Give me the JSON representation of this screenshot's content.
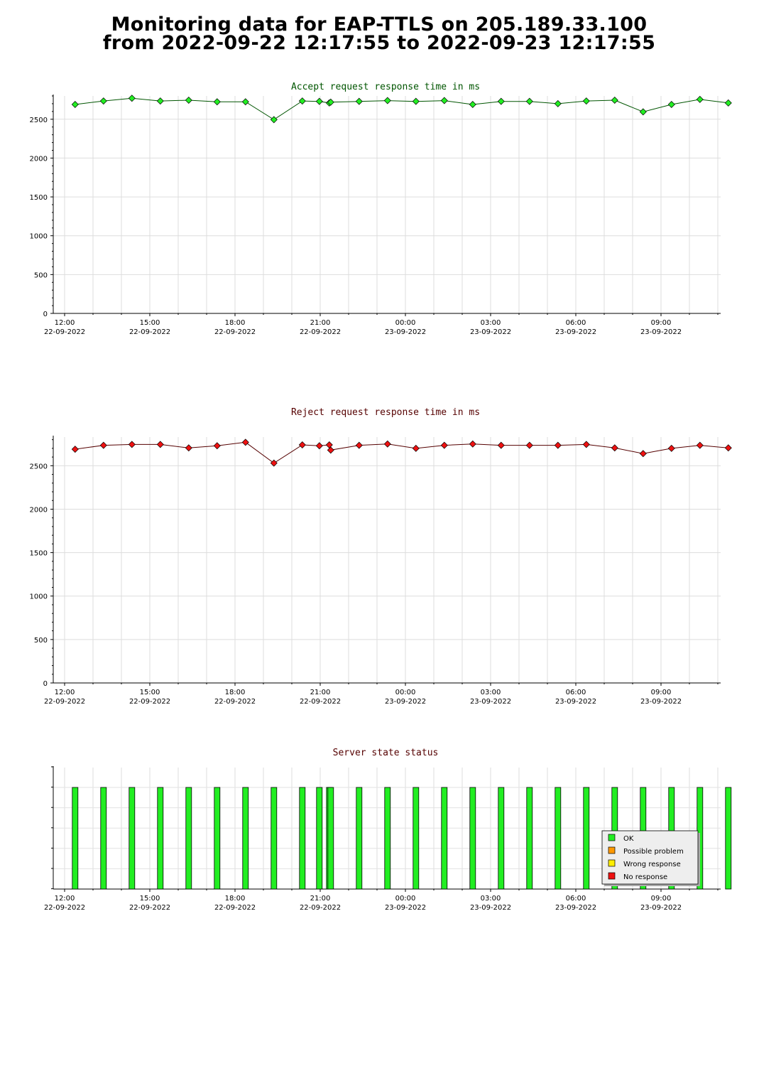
{
  "title_line1": "Monitoring data for EAP-TTLS on 205.189.33.100",
  "title_line2": "from 2022-09-22 12:17:55 to 2022-09-23 12:17:55",
  "x_ticks": [
    {
      "time": "12:00",
      "date": "22-09-2022"
    },
    {
      "time": "15:00",
      "date": "22-09-2022"
    },
    {
      "time": "18:00",
      "date": "22-09-2022"
    },
    {
      "time": "21:00",
      "date": "22-09-2022"
    },
    {
      "time": "00:00",
      "date": "23-09-2022"
    },
    {
      "time": "03:00",
      "date": "23-09-2022"
    },
    {
      "time": "06:00",
      "date": "23-09-2022"
    },
    {
      "time": "09:00",
      "date": "23-09-2022"
    }
  ],
  "legend": [
    {
      "label": "OK",
      "color": "#22ee22"
    },
    {
      "label": "Possible problem",
      "color": "#ff9900"
    },
    {
      "label": "Wrong response",
      "color": "#ffee00"
    },
    {
      "label": "No response",
      "color": "#ee1111"
    }
  ],
  "chart_data": [
    {
      "type": "line",
      "title": "Accept request response time in ms",
      "title_color": "#005500",
      "marker_color": "#22ee22",
      "line_color": "#005500",
      "x_unit": "hours since 22-09-2022 12:00",
      "xlim": [
        -0.4,
        23.1
      ],
      "ylim": [
        0,
        2800
      ],
      "yticks": [
        0,
        500,
        1000,
        1500,
        2000,
        2500
      ],
      "grid": true,
      "x": [
        0.37,
        1.37,
        2.37,
        3.37,
        4.37,
        5.37,
        6.37,
        7.37,
        8.37,
        8.97,
        9.32,
        9.37,
        10.37,
        11.37,
        12.37,
        13.37,
        14.37,
        15.37,
        16.37,
        17.37,
        18.37,
        19.37,
        20.37,
        21.37,
        22.37,
        23.37
      ],
      "y": [
        2690,
        2735,
        2770,
        2735,
        2745,
        2725,
        2725,
        2495,
        2735,
        2730,
        2710,
        2720,
        2730,
        2740,
        2730,
        2740,
        2690,
        2730,
        2730,
        2700,
        2735,
        2745,
        2595,
        2690,
        2755,
        2710
      ]
    },
    {
      "type": "line",
      "title": "Reject request response time in ms",
      "title_color": "#550000",
      "marker_color": "#ee1111",
      "line_color": "#550000",
      "x_unit": "hours since 22-09-2022 12:00",
      "xlim": [
        -0.4,
        23.1
      ],
      "ylim": [
        0,
        2830
      ],
      "yticks": [
        0,
        500,
        1000,
        1500,
        2000,
        2500
      ],
      "grid": true,
      "x": [
        0.37,
        1.37,
        2.37,
        3.37,
        4.37,
        5.37,
        6.37,
        7.37,
        8.37,
        8.97,
        9.32,
        9.37,
        10.37,
        11.37,
        12.37,
        13.37,
        14.37,
        15.37,
        16.37,
        17.37,
        18.37,
        19.37,
        20.37,
        21.37,
        22.37,
        23.37
      ],
      "y": [
        2690,
        2735,
        2745,
        2745,
        2705,
        2730,
        2770,
        2530,
        2740,
        2730,
        2740,
        2680,
        2735,
        2750,
        2700,
        2735,
        2750,
        2735,
        2735,
        2735,
        2745,
        2705,
        2640,
        2700,
        2735,
        2705
      ]
    },
    {
      "type": "bar",
      "title": "Server state status",
      "title_color": "#550000",
      "x_unit": "hours since 22-09-2022 12:00",
      "xlim": [
        -0.4,
        23.1
      ],
      "grid": true,
      "legend_position": "bottom-right",
      "x": [
        0.37,
        1.37,
        2.37,
        3.37,
        4.37,
        5.37,
        6.37,
        7.37,
        8.37,
        8.97,
        9.32,
        9.37,
        10.37,
        11.37,
        12.37,
        13.37,
        14.37,
        15.37,
        16.37,
        17.37,
        18.37,
        19.37,
        20.37,
        21.37,
        22.37,
        23.37
      ],
      "status": [
        "OK",
        "OK",
        "OK",
        "OK",
        "OK",
        "OK",
        "OK",
        "OK",
        "OK",
        "OK",
        "OK",
        "OK",
        "OK",
        "OK",
        "OK",
        "OK",
        "OK",
        "OK",
        "OK",
        "OK",
        "OK",
        "OK",
        "OK",
        "OK",
        "OK",
        "OK"
      ]
    }
  ]
}
